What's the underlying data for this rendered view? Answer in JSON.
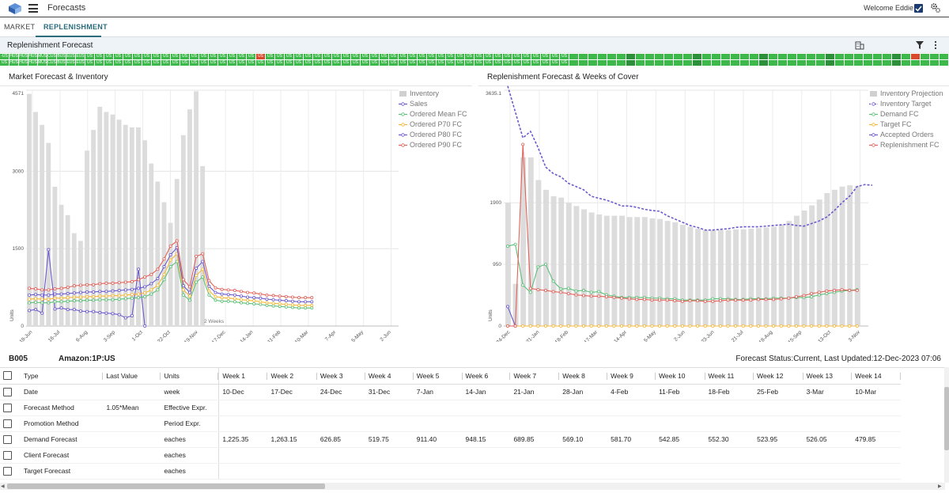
{
  "header": {
    "app_title": "Forecasts",
    "welcome": "Welcome Eddie"
  },
  "tabs": [
    {
      "label": "MARKET"
    },
    {
      "label": "REPLENISHMENT"
    }
  ],
  "section": {
    "title": "Replenishment Forecast"
  },
  "heatmap": {
    "row1_labels": [
      "-US",
      "HUS",
      "HUS",
      "HUS",
      "MUS",
      "CUS",
      "BUS",
      "EUS",
      "EUS",
      "US",
      "US",
      "US",
      "US",
      "US",
      "US",
      "US",
      "US",
      "US",
      "US",
      "US",
      "US",
      "US",
      "US",
      "US",
      "US",
      "US",
      "US",
      "US",
      "US",
      "US",
      "US",
      "US",
      "US",
      "US",
      "US",
      "US",
      "US",
      "US",
      "US",
      "US",
      "US",
      "US",
      "US",
      "US",
      "US",
      "US",
      "US",
      "US",
      "US",
      "US",
      "US",
      "US",
      "US",
      "US",
      "US",
      "US",
      "US",
      "US",
      "US",
      "US"
    ],
    "row2_labels": [
      "US",
      "HUS",
      "HUS",
      "HUS",
      "MUS",
      "CUS",
      "BUS",
      "EUS",
      "EUS",
      "US",
      "US",
      "US",
      "US",
      "US",
      "US",
      "US",
      "US",
      "US",
      "US",
      "US",
      "US",
      "US",
      "US",
      "US",
      "US",
      "US",
      "US",
      "US",
      "US",
      "US",
      "US",
      "US",
      "US",
      "US",
      "US",
      "US",
      "US",
      "US",
      "US",
      "US",
      "US",
      "US",
      "US",
      "US",
      "US",
      "US",
      "US",
      "US",
      "US",
      "US",
      "US",
      "US",
      "US",
      "US",
      "US",
      "US",
      "US",
      "US",
      "US",
      "US"
    ]
  },
  "colors": {
    "accent": "#2a6b7c",
    "inventory": "#dcdcdc",
    "sales": "#6a5acd",
    "mean": "#5cbf7a",
    "p70": "#f5b83a",
    "p80": "#6a5acd",
    "p90": "#e0625a",
    "target": "#f5b83a",
    "heat_green": "#3cb94a",
    "heat_red": "#d84a2e"
  },
  "chart_data": [
    {
      "type": "bar+line",
      "title": "Market Forecast & Inventory",
      "ylabel": "Units",
      "ylim": [
        0,
        4571
      ],
      "yticks": [
        "0",
        "1500",
        "3000",
        "4571"
      ],
      "xticks": [
        "18-Jun",
        "16-Jul",
        "6-Aug",
        "3-Sep",
        "1-Oct",
        "22-Oct",
        "19-Nov",
        "17-Dec",
        "14-Jan",
        "11-Feb",
        "10-Mar",
        "7-Apr",
        "5-May",
        "2-Jun"
      ],
      "annotation": "2 Weeks",
      "legend": [
        "Inventory",
        "Sales",
        "Ordered Mean FC",
        "Ordered P70 FC",
        "Ordered P80 FC",
        "Ordered P90 FC"
      ],
      "inventory": [
        4500,
        4150,
        3900,
        3550,
        2700,
        2350,
        2150,
        1800,
        1650,
        3400,
        3800,
        4250,
        4150,
        4100,
        4000,
        3900,
        3850,
        3850,
        3600,
        3150,
        2800,
        2400,
        2000,
        2850,
        3700,
        4200,
        4550,
        3100,
        0,
        0,
        0,
        0,
        0,
        0,
        0,
        0,
        0,
        0,
        0,
        0,
        0,
        0,
        0,
        0,
        0,
        0,
        0,
        0,
        0,
        0,
        0,
        0,
        0,
        0,
        0,
        0,
        0,
        0
      ],
      "series": [
        {
          "name": "Sales",
          "values": [
            300,
            320,
            250,
            1480,
            330,
            350,
            320,
            320,
            290,
            280,
            280,
            260,
            250,
            240,
            220,
            160,
            200,
            1100,
            0
          ]
        },
        {
          "name": "Ordered Mean FC",
          "values": [
            450,
            460,
            450,
            450,
            470,
            470,
            480,
            490,
            490,
            500,
            500,
            510,
            510,
            510,
            520,
            530,
            540,
            550,
            570,
            620,
            700,
            900,
            1150,
            1250,
            600,
            500,
            850,
            950,
            600,
            500,
            480,
            480,
            470,
            450,
            440,
            430,
            420,
            400,
            390,
            380,
            370,
            360,
            350,
            350,
            350
          ]
        },
        {
          "name": "Ordered P70 FC",
          "values": [
            520,
            530,
            520,
            520,
            540,
            540,
            550,
            560,
            560,
            570,
            570,
            580,
            580,
            590,
            590,
            600,
            610,
            620,
            640,
            700,
            790,
            1000,
            1280,
            1400,
            700,
            580,
            980,
            1100,
            680,
            570,
            550,
            540,
            530,
            510,
            500,
            490,
            470,
            450,
            440,
            430,
            420,
            410,
            400,
            400,
            400
          ]
        },
        {
          "name": "Ordered P80 FC",
          "values": [
            600,
            610,
            600,
            600,
            620,
            620,
            630,
            640,
            650,
            660,
            660,
            670,
            670,
            680,
            690,
            700,
            710,
            730,
            760,
            820,
            920,
            1150,
            1380,
            1520,
            780,
            650,
            1120,
            1250,
            770,
            650,
            620,
            610,
            600,
            580,
            560,
            550,
            540,
            520,
            510,
            500,
            490,
            480,
            470,
            470,
            470
          ]
        },
        {
          "name": "Ordered P90 FC",
          "values": [
            730,
            720,
            700,
            700,
            720,
            730,
            750,
            780,
            790,
            800,
            800,
            820,
            830,
            830,
            840,
            850,
            860,
            900,
            950,
            1000,
            1100,
            1300,
            1550,
            1650,
            900,
            760,
            1350,
            1400,
            880,
            740,
            710,
            700,
            690,
            670,
            650,
            640,
            620,
            600,
            590,
            580,
            570,
            560,
            550,
            550,
            550
          ]
        }
      ]
    },
    {
      "type": "bar+line",
      "title": "Replenishment Forecast & Weeks of Cover",
      "ylabel": "Units",
      "ylim": [
        0,
        3635.1
      ],
      "yticks": [
        "0",
        "950",
        "1900",
        "3635.1"
      ],
      "xticks": [
        "24-Dec",
        "21-Jan",
        "18-Feb",
        "17-Mar",
        "14-Apr",
        "5-May",
        "2-Jun",
        "23-Jun",
        "21-Jul",
        "18-Aug",
        "15-Sep",
        "13-Oct",
        "3-Nov"
      ],
      "legend": [
        "Inventory Projection",
        "Inventory Target",
        "Demand FC",
        "Target FC",
        "Accepted Orders",
        "Replenishment FC"
      ],
      "inventory": [
        1900,
        650,
        2600,
        2600,
        2250,
        2100,
        2000,
        1980,
        1900,
        1850,
        1800,
        1750,
        1720,
        1700,
        1700,
        1700,
        1680,
        1680,
        1680,
        1660,
        1650,
        1620,
        1600,
        1560,
        1530,
        1500,
        1480,
        1480,
        1480,
        1480,
        1490,
        1490,
        1500,
        1510,
        1520,
        1530,
        1560,
        1620,
        1700,
        1780,
        1860,
        1950,
        2050,
        2100,
        2150,
        2170,
        2160
      ],
      "series": [
        {
          "name": "Inventory Target",
          "values": [
            3700,
            3300,
            2900,
            3000,
            2750,
            2450,
            2350,
            2300,
            2200,
            2150,
            2100,
            2000,
            1970,
            1940,
            1900,
            1850,
            1850,
            1830,
            1800,
            1780,
            1770,
            1700,
            1650,
            1600,
            1550,
            1520,
            1480,
            1480,
            1490,
            1500,
            1520,
            1530,
            1530,
            1530,
            1540,
            1550,
            1560,
            1570,
            1550,
            1540,
            1580,
            1620,
            1680,
            1780,
            1900,
            2000,
            2150,
            2180,
            2170
          ]
        },
        {
          "name": "Demand FC",
          "values": [
            1230,
            1260,
            630,
            520,
            910,
            950,
            690,
            570,
            580,
            540,
            550,
            520,
            530,
            480,
            460,
            440,
            440,
            440,
            440,
            430,
            430,
            420,
            420,
            400,
            400,
            400,
            400,
            420,
            420,
            420,
            410,
            410,
            420,
            420,
            420,
            430,
            430,
            430,
            440,
            440,
            450,
            480,
            500,
            520,
            540,
            550,
            560
          ]
        },
        {
          "name": "Target FC",
          "values": [
            0,
            0,
            0,
            0,
            0,
            0,
            0,
            0,
            0,
            0,
            0,
            0,
            0,
            0,
            0,
            0,
            0,
            0,
            0,
            0,
            0,
            0,
            0,
            0,
            0,
            0,
            0,
            0,
            0,
            0,
            0,
            0,
            0,
            0,
            0,
            0,
            0,
            0,
            0,
            0,
            0,
            0,
            0,
            0,
            0,
            0,
            0
          ]
        },
        {
          "name": "Accepted Orders",
          "values": [
            300,
            0
          ]
        },
        {
          "name": "Replenishment FC",
          "values": [
            0,
            0,
            2800,
            580,
            560,
            550,
            530,
            520,
            500,
            480,
            470,
            460,
            460,
            450,
            440,
            430,
            420,
            410,
            410,
            400,
            400,
            400,
            390,
            380,
            390,
            390,
            380,
            380,
            390,
            400,
            400,
            400,
            400,
            410,
            410,
            410,
            420,
            430,
            450,
            470,
            500,
            520,
            540,
            550,
            560,
            550,
            550
          ]
        }
      ]
    }
  ],
  "info": {
    "sku": "B005",
    "account": "Amazon:1P:US",
    "status": "Forecast Status:Current, Last Updated:12-Dec-2023 07:06"
  },
  "table": {
    "headers": [
      "Type",
      "Last Value",
      "Units",
      "Week 1",
      "Week 2",
      "Week 3",
      "Week 4",
      "Week 5",
      "Week 6",
      "Week 7",
      "Week 8",
      "Week 9",
      "Week 10",
      "Week 11",
      "Week 12",
      "Week 13",
      "Week 14"
    ],
    "rows": [
      [
        "Date",
        "",
        "week",
        "10-Dec",
        "17-Dec",
        "24-Dec",
        "31-Dec",
        "7-Jan",
        "14-Jan",
        "21-Jan",
        "28-Jan",
        "4-Feb",
        "11-Feb",
        "18-Feb",
        "25-Feb",
        "3-Mar",
        "10-Mar"
      ],
      [
        "Forecast Method",
        "1.05*Mean",
        "Effective Expr.",
        "",
        "",
        "",
        "",
        "",
        "",
        "",
        "",
        "",
        "",
        "",
        "",
        "",
        ""
      ],
      [
        "Promotion Method",
        "",
        "Period Expr.",
        "",
        "",
        "",
        "",
        "",
        "",
        "",
        "",
        "",
        "",
        "",
        "",
        "",
        ""
      ],
      [
        "Demand Forecast",
        "",
        "eaches",
        "1,225.35",
        "1,263.15",
        "626.85",
        "519.75",
        "911.40",
        "948.15",
        "689.85",
        "569.10",
        "581.70",
        "542.85",
        "552.30",
        "523.95",
        "526.05",
        "479.85"
      ],
      [
        "Client Forecast",
        "",
        "eaches",
        "",
        "",
        "",
        "",
        "",
        "",
        "",
        "",
        "",
        "",
        "",
        "",
        "",
        ""
      ],
      [
        "Target Forecast",
        "",
        "eaches",
        "",
        "",
        "",
        "",
        "",
        "",
        "",
        "",
        "",
        "",
        "",
        "",
        "",
        ""
      ]
    ]
  }
}
